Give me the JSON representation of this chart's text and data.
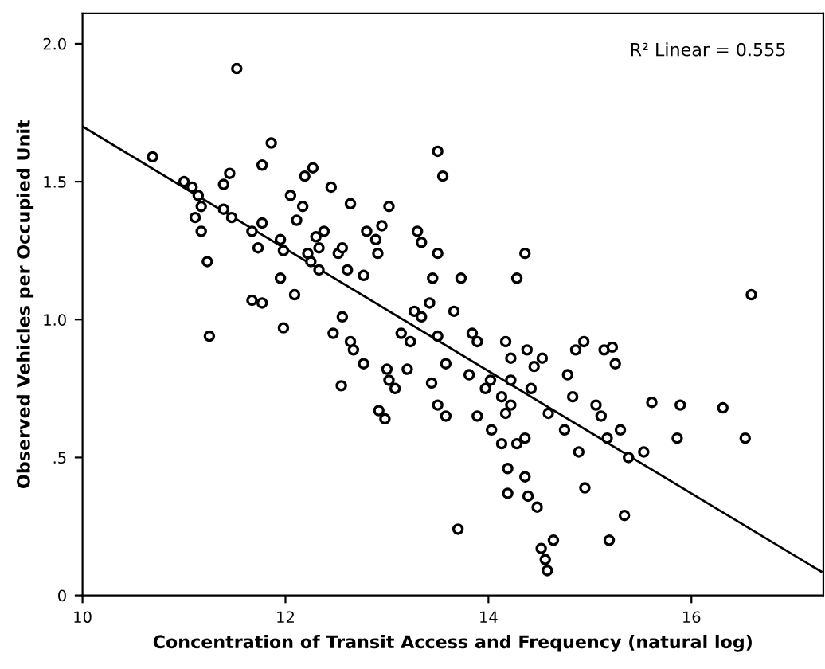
{
  "chart_data": {
    "type": "scatter",
    "xlabel": "Concentration of Transit Access and Frequency (natural log)",
    "ylabel": "Observed Vehicles per Occupied Unit",
    "annotations": [
      "R² Linear = 0.555"
    ],
    "xlim": [
      10,
      17.3
    ],
    "ylim": [
      0,
      2.11
    ],
    "xticks": [
      10,
      12,
      14,
      16
    ],
    "yticks": [
      0,
      {
        "value": 0.5,
        "label": ".5"
      },
      {
        "value": 1.0,
        "label": "1.0"
      },
      {
        "value": 1.5,
        "label": "1.5"
      },
      {
        "value": 2.0,
        "label": "2.0"
      }
    ],
    "grid": false,
    "legend": false,
    "marker": "circle",
    "series": [
      {
        "color": "#000000",
        "x": [
          11.52,
          10.69,
          11.08,
          11.0,
          11.14,
          11.17,
          11.11,
          11.17,
          11.23,
          11.25,
          11.39,
          11.47,
          11.39,
          11.45,
          11.77,
          11.86,
          11.77,
          11.73,
          11.67,
          11.95,
          11.98,
          11.95,
          12.05,
          12.11,
          12.27,
          12.19,
          12.17,
          12.3,
          12.33,
          12.38,
          12.45,
          12.22,
          12.25,
          12.33,
          12.52,
          12.56,
          12.61,
          12.64,
          12.8,
          12.89,
          12.95,
          13.02,
          12.91,
          12.77,
          12.09,
          12.47,
          11.67,
          11.77,
          11.98,
          12.56,
          12.64,
          12.67,
          12.77,
          12.55,
          13.0,
          13.02,
          12.92,
          12.98,
          13.08,
          13.2,
          13.23,
          13.14,
          13.27,
          13.34,
          13.42,
          13.45,
          13.3,
          13.34,
          13.5,
          13.5,
          13.58,
          13.44,
          13.5,
          13.5,
          13.55,
          13.73,
          13.66,
          13.84,
          13.89,
          13.81,
          13.97,
          13.89,
          13.58,
          13.7,
          14.02,
          14.13,
          14.17,
          14.22,
          14.03,
          14.13,
          14.28,
          14.36,
          14.19,
          14.19,
          14.36,
          14.28,
          14.17,
          14.22,
          14.38,
          14.45,
          14.53,
          14.42,
          14.22,
          14.59,
          14.36,
          14.39,
          14.48,
          14.52,
          14.56,
          14.58,
          14.64,
          14.75,
          14.83,
          14.78,
          14.86,
          14.94,
          14.89,
          14.95,
          15.14,
          15.06,
          15.11,
          15.17,
          15.3,
          15.38,
          15.19,
          15.34,
          15.22,
          15.25,
          15.53,
          15.61,
          15.89,
          16.31,
          15.86,
          16.53,
          16.59
        ],
        "values": [
          1.91,
          1.59,
          1.48,
          1.5,
          1.45,
          1.41,
          1.37,
          1.32,
          1.21,
          0.94,
          1.4,
          1.37,
          1.49,
          1.53,
          1.56,
          1.64,
          1.35,
          1.26,
          1.32,
          1.29,
          1.25,
          1.15,
          1.45,
          1.36,
          1.55,
          1.52,
          1.41,
          1.3,
          1.26,
          1.32,
          1.48,
          1.24,
          1.21,
          1.18,
          1.24,
          1.26,
          1.18,
          1.42,
          1.32,
          1.29,
          1.34,
          1.41,
          1.24,
          1.16,
          1.09,
          0.95,
          1.07,
          1.06,
          0.97,
          1.01,
          0.92,
          0.89,
          0.84,
          0.76,
          0.82,
          0.78,
          0.67,
          0.64,
          0.75,
          0.82,
          0.92,
          0.95,
          1.03,
          1.01,
          1.06,
          1.15,
          1.32,
          1.28,
          1.24,
          0.94,
          0.84,
          0.77,
          0.69,
          1.61,
          1.52,
          1.15,
          1.03,
          0.95,
          0.92,
          0.8,
          0.75,
          0.65,
          0.65,
          0.24,
          0.78,
          0.72,
          0.66,
          0.69,
          0.6,
          0.55,
          0.55,
          0.57,
          0.46,
          0.37,
          1.24,
          1.15,
          0.92,
          0.86,
          0.89,
          0.83,
          0.86,
          0.75,
          0.78,
          0.66,
          0.43,
          0.36,
          0.32,
          0.17,
          0.13,
          0.09,
          0.2,
          0.6,
          0.72,
          0.8,
          0.89,
          0.92,
          0.52,
          0.39,
          0.89,
          0.69,
          0.65,
          0.57,
          0.6,
          0.5,
          0.2,
          0.29,
          0.9,
          0.84,
          0.52,
          0.7,
          0.69,
          0.68,
          0.57,
          0.57,
          1.09
        ]
      },
      {
        "type": "line",
        "color": "#000000",
        "marker": "none",
        "x": [
          10,
          17.28
        ],
        "values": [
          1.7,
          0.086
        ]
      }
    ]
  }
}
